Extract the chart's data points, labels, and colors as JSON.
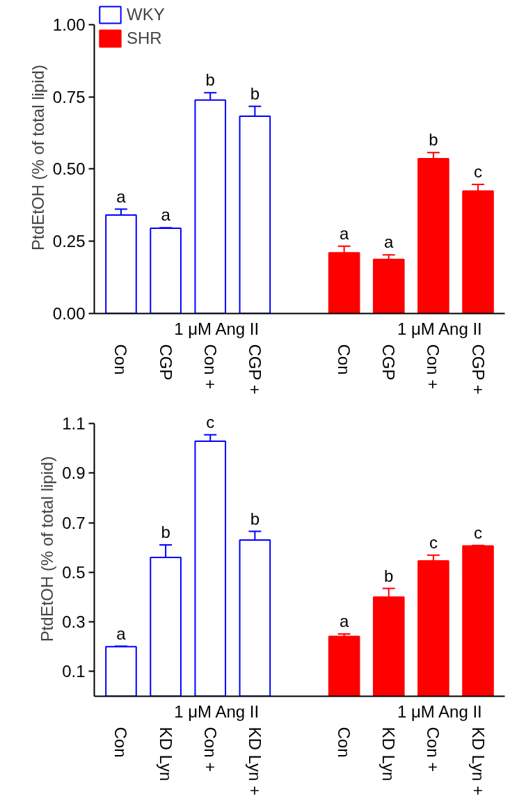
{
  "chart_data": [
    {
      "type": "bar",
      "ylabel": "PtdEtOH (% of total lipid)",
      "categories": [
        "Con",
        "CGP",
        "Con +",
        "CGP +",
        null,
        "Con",
        "CGP",
        "Con +",
        "CGP +"
      ],
      "ylim": [
        0,
        1.0
      ],
      "yticks": [
        {
          "value": 0,
          "label": "0.00"
        },
        {
          "value": 0.25,
          "label": "0.25"
        },
        {
          "value": 0.5,
          "label": "0.50"
        },
        {
          "value": 0.75,
          "label": "0.75"
        },
        {
          "value": 1.0,
          "label": "1.00"
        }
      ],
      "legend": "top left",
      "grid": false,
      "annotations": [
        "1 μM Ang II",
        "1 μM Ang II"
      ],
      "series": [
        {
          "name": "WKY",
          "color": "#0000ff",
          "values": [
            0.341,
            0.295,
            0.739,
            0.683,
            null,
            null,
            null,
            null,
            null
          ],
          "errors": [
            0.02,
            0.002,
            0.025,
            0.034,
            null,
            null,
            null,
            null,
            null
          ],
          "value_labels": [
            "a",
            "a",
            "b",
            "b",
            null,
            null,
            null,
            null,
            null
          ]
        },
        {
          "name": "SHR",
          "color": "#ff0000",
          "values": [
            null,
            null,
            null,
            null,
            null,
            0.21,
            0.187,
            0.536,
            0.424
          ],
          "errors": [
            null,
            null,
            null,
            null,
            null,
            0.023,
            0.016,
            0.021,
            0.023
          ],
          "value_labels": [
            null,
            null,
            null,
            null,
            null,
            "a",
            "a",
            "b",
            "c"
          ]
        }
      ]
    },
    {
      "type": "bar",
      "ylabel": "PtdEtOH (% of total lipid)",
      "categories": [
        "Con",
        "KD Lyn",
        "Con +",
        "KD Lyn +",
        null,
        "Con",
        "KD Lyn",
        "Con +",
        "KD Lyn +"
      ],
      "ylim": [
        0,
        1.1
      ],
      "yticks": [
        0.1,
        0.3,
        0.5,
        0.7,
        0.9,
        1.1
      ],
      "legend": false,
      "grid": false,
      "annotations": [
        "1 μM Ang II",
        "1 μM Ang II"
      ],
      "series": [
        {
          "color": "#0000ff",
          "values": [
            0.2,
            0.56,
            1.028,
            0.63,
            null,
            null,
            null,
            null,
            null
          ],
          "errors": [
            0.002,
            0.05,
            0.026,
            0.035,
            null,
            null,
            null,
            null,
            null
          ],
          "value_labels": [
            "a",
            "b",
            "c",
            "b",
            null,
            null,
            null,
            null,
            null
          ]
        },
        {
          "color": "#ff0000",
          "values": [
            null,
            null,
            null,
            null,
            null,
            0.241,
            0.4,
            0.546,
            0.606
          ],
          "errors": [
            null,
            null,
            null,
            null,
            null,
            0.01,
            0.035,
            0.023,
            0.002
          ],
          "value_labels": [
            null,
            null,
            null,
            null,
            null,
            "a",
            "b",
            "c",
            "c"
          ]
        }
      ]
    }
  ]
}
